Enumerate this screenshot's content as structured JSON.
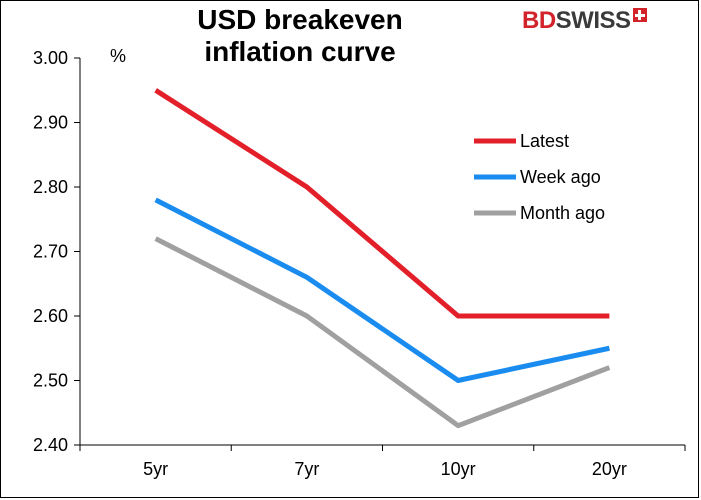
{
  "logo": {
    "text_red": "BD",
    "text_dark": "SWISS",
    "icon": "swiss-cross-icon"
  },
  "chart_data": {
    "type": "line",
    "title": "USD breakeven\ninflation curve",
    "ylabel": "%",
    "categories": [
      "5yr",
      "7yr",
      "10yr",
      "20yr"
    ],
    "ylim": [
      2.4,
      3.0
    ],
    "yticks": [
      "2.40",
      "2.50",
      "2.60",
      "2.70",
      "2.80",
      "2.90",
      "3.00"
    ],
    "grid": false,
    "legend_position": "top-right",
    "series": [
      {
        "name": "Latest",
        "color": "#e3202a",
        "values": [
          2.95,
          2.8,
          2.6,
          2.6
        ]
      },
      {
        "name": "Week ago",
        "color": "#1a8cf0",
        "values": [
          2.78,
          2.66,
          2.5,
          2.55
        ]
      },
      {
        "name": "Month ago",
        "color": "#a0a0a0",
        "values": [
          2.72,
          2.6,
          2.43,
          2.52
        ]
      }
    ]
  }
}
